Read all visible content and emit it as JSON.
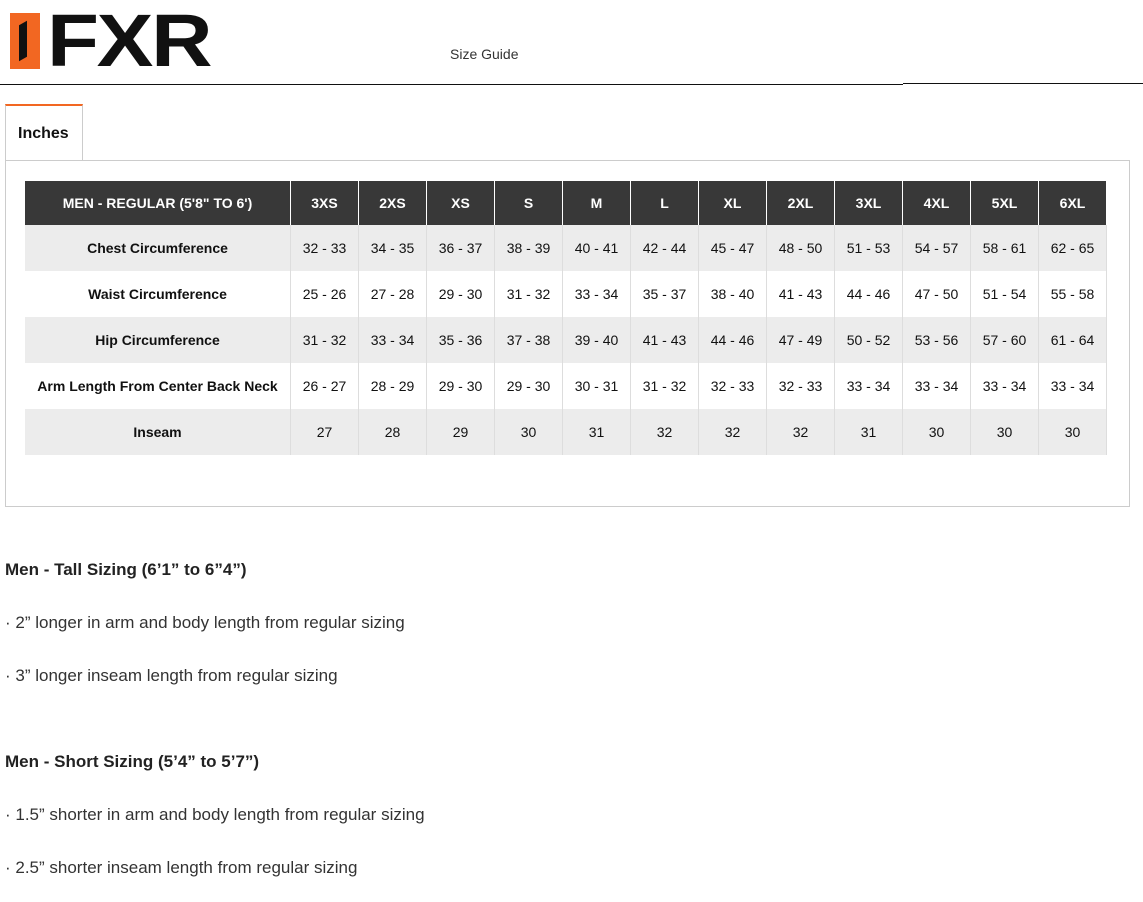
{
  "header": {
    "logo_text": "FXR",
    "title": "Size Guide",
    "accent": "#f26722"
  },
  "tabs": [
    {
      "label": "Inches",
      "active": true
    }
  ],
  "table": {
    "columns": [
      "MEN - REGULAR (5'8\" TO 6')",
      "3XS",
      "2XS",
      "XS",
      "S",
      "M",
      "L",
      "XL",
      "2XL",
      "3XL",
      "4XL",
      "5XL",
      "6XL"
    ],
    "rows": [
      {
        "label": "Chest Circumference",
        "values": [
          "32 - 33",
          "34 - 35",
          "36 - 37",
          "38 - 39",
          "40 - 41",
          "42 - 44",
          "45 - 47",
          "48 - 50",
          "51 - 53",
          "54 - 57",
          "58 - 61",
          "62 - 65"
        ]
      },
      {
        "label": "Waist Circumference",
        "values": [
          "25 - 26",
          "27 - 28",
          "29 - 30",
          "31 - 32",
          "33 - 34",
          "35 - 37",
          "38 - 40",
          "41 - 43",
          "44 - 46",
          "47 - 50",
          "51 - 54",
          "55 - 58"
        ]
      },
      {
        "label": "Hip Circumference",
        "values": [
          "31 - 32",
          "33 - 34",
          "35 - 36",
          "37 - 38",
          "39 - 40",
          "41 - 43",
          "44 - 46",
          "47 - 49",
          "50 - 52",
          "53 - 56",
          "57 - 60",
          "61 - 64"
        ]
      },
      {
        "label": "Arm Length From Center Back Neck",
        "values": [
          "26 - 27",
          "28 - 29",
          "29 - 30",
          "29 - 30",
          "30 - 31",
          "31 - 32",
          "32 - 33",
          "32 - 33",
          "33 - 34",
          "33 - 34",
          "33 - 34",
          "33 - 34"
        ]
      },
      {
        "label": "Inseam",
        "values": [
          "27",
          "28",
          "29",
          "30",
          "31",
          "32",
          "32",
          "32",
          "31",
          "30",
          "30",
          "30"
        ]
      }
    ]
  },
  "notes": [
    {
      "heading": "Men - Tall Sizing (6’1” to 6”4”)",
      "items": [
        "· 2” longer in arm and body length from regular sizing",
        "· 3” longer inseam length from regular sizing"
      ]
    },
    {
      "heading": "Men - Short Sizing (5’4” to 5’7”)",
      "items": [
        "· 1.5” shorter in arm and body length from regular sizing",
        "· 2.5” shorter inseam length from regular sizing"
      ]
    }
  ]
}
